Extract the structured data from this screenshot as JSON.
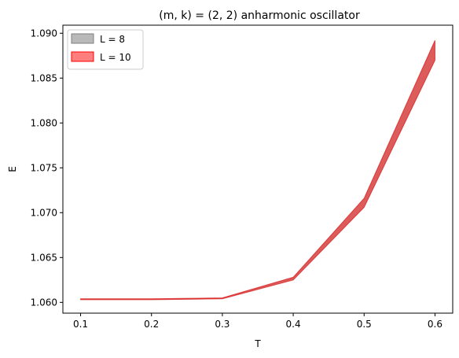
{
  "chart_data": {
    "type": "area",
    "title": "(m, k) = (2, 2) anharmonic oscillator",
    "xlabel": "T",
    "ylabel": "E",
    "xlim": [
      0.075,
      0.625
    ],
    "ylim": [
      1.0588,
      1.0909
    ],
    "xticks": [
      0.1,
      0.2,
      0.3,
      0.4,
      0.5,
      0.6
    ],
    "xtick_labels": [
      "0.1",
      "0.2",
      "0.3",
      "0.4",
      "0.5",
      "0.6"
    ],
    "yticks": [
      1.06,
      1.065,
      1.07,
      1.075,
      1.08,
      1.085,
      1.09
    ],
    "ytick_labels": [
      "1.060",
      "1.065",
      "1.070",
      "1.075",
      "1.080",
      "1.085",
      "1.090"
    ],
    "grid": false,
    "legend_position": "upper-left",
    "x": [
      0.1,
      0.2,
      0.3,
      0.4,
      0.5,
      0.6
    ],
    "series": [
      {
        "name": "L = 8",
        "color": "#7f7f7f",
        "alpha": 0.55,
        "lower": [
          1.0603,
          1.0603,
          1.0604,
          1.0625,
          1.0706,
          1.087
        ],
        "upper": [
          1.0604,
          1.0604,
          1.0605,
          1.0628,
          1.0716,
          1.0892
        ]
      },
      {
        "name": "L = 10",
        "color": "#ff0000",
        "alpha": 0.5,
        "lower": [
          1.0603,
          1.0603,
          1.0604,
          1.0625,
          1.0706,
          1.087
        ],
        "upper": [
          1.0604,
          1.0604,
          1.0605,
          1.0628,
          1.0716,
          1.0892
        ]
      }
    ]
  }
}
